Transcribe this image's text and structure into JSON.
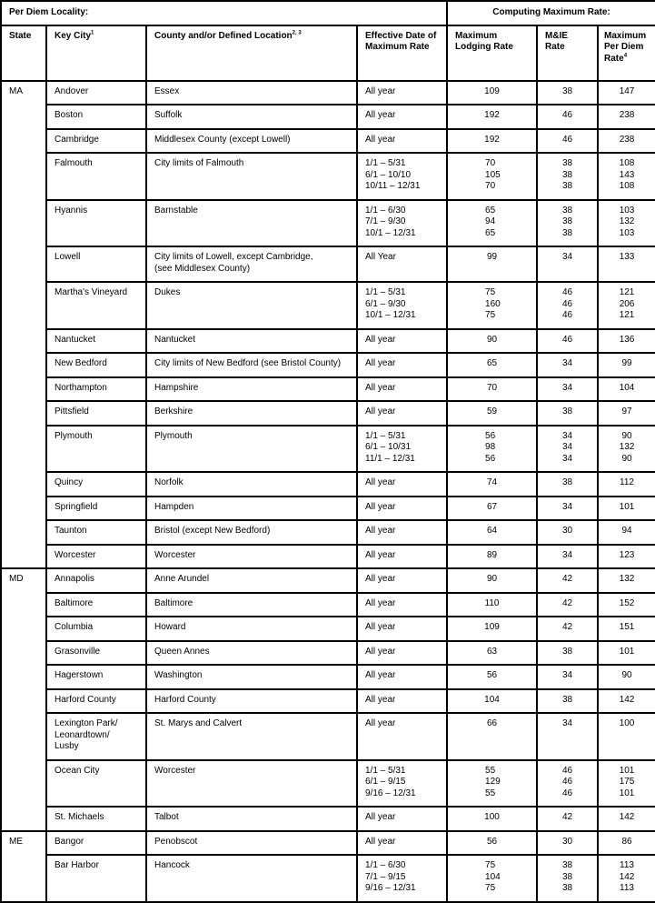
{
  "header": {
    "group_locality": "Per Diem Locality:",
    "group_computing": "Computing Maximum Rate:",
    "col_state": "State",
    "col_key_city": "Key City",
    "col_key_city_note": "1",
    "col_county": "County and/or Defined Location",
    "col_county_note": "2, 3",
    "col_effective": "Effective Date of Maximum Rate",
    "col_lodging": "Maximum Lodging Rate",
    "col_mie": "M&IE Rate",
    "col_per_diem": "Maximum Per Diem Rate",
    "col_per_diem_note": "4"
  },
  "states": [
    {
      "state": "MA",
      "rows": [
        {
          "city": [
            "Andover"
          ],
          "county": [
            "Essex"
          ],
          "dates": [
            "All year"
          ],
          "lodging": [
            "109"
          ],
          "mie": [
            "38"
          ],
          "total": [
            "147"
          ]
        },
        {
          "city": [
            "Boston"
          ],
          "county": [
            "Suffolk"
          ],
          "dates": [
            "All year"
          ],
          "lodging": [
            "192"
          ],
          "mie": [
            "46"
          ],
          "total": [
            "238"
          ]
        },
        {
          "city": [
            "Cambridge"
          ],
          "county": [
            "Middlesex County (except Lowell)"
          ],
          "dates": [
            "All year"
          ],
          "lodging": [
            "192"
          ],
          "mie": [
            "46"
          ],
          "total": [
            "238"
          ]
        },
        {
          "city": [
            "Falmouth"
          ],
          "county": [
            "City limits of Falmouth"
          ],
          "dates": [
            "1/1 – 5/31",
            "6/1 – 10/10",
            "10/11 – 12/31"
          ],
          "lodging": [
            "70",
            "105",
            "70"
          ],
          "mie": [
            "38",
            "38",
            "38"
          ],
          "total": [
            "108",
            "143",
            "108"
          ]
        },
        {
          "city": [
            "Hyannis"
          ],
          "county": [
            "Barnstable"
          ],
          "dates": [
            "1/1 – 6/30",
            "7/1 – 9/30",
            "10/1 – 12/31"
          ],
          "lodging": [
            "65",
            "94",
            "65"
          ],
          "mie": [
            "38",
            "38",
            "38"
          ],
          "total": [
            "103",
            "132",
            "103"
          ]
        },
        {
          "city": [
            "Lowell"
          ],
          "county": [
            "City limits of Lowell, except Cambridge,",
            "(see Middlesex County)"
          ],
          "dates": [
            "All Year"
          ],
          "lodging": [
            "99"
          ],
          "mie": [
            "34"
          ],
          "total": [
            "133"
          ]
        },
        {
          "city": [
            "Martha's Vineyard"
          ],
          "county": [
            "Dukes"
          ],
          "dates": [
            "1/1 – 5/31",
            "6/1 – 9/30",
            "10/1 – 12/31"
          ],
          "lodging": [
            "75",
            "160",
            "75"
          ],
          "mie": [
            "46",
            "46",
            "46"
          ],
          "total": [
            "121",
            "206",
            "121"
          ]
        },
        {
          "city": [
            "Nantucket"
          ],
          "county": [
            "Nantucket"
          ],
          "dates": [
            "All year"
          ],
          "lodging": [
            "90"
          ],
          "mie": [
            "46"
          ],
          "total": [
            "136"
          ]
        },
        {
          "city": [
            "New Bedford"
          ],
          "county": [
            "City limits of New Bedford (see Bristol County)"
          ],
          "dates": [
            "All year"
          ],
          "lodging": [
            "65"
          ],
          "mie": [
            "34"
          ],
          "total": [
            "99"
          ]
        },
        {
          "city": [
            "Northampton"
          ],
          "county": [
            "Hampshire"
          ],
          "dates": [
            "All year"
          ],
          "lodging": [
            "70"
          ],
          "mie": [
            "34"
          ],
          "total": [
            "104"
          ]
        },
        {
          "city": [
            "Pittsfield"
          ],
          "county": [
            "Berkshire"
          ],
          "dates": [
            "All year"
          ],
          "lodging": [
            "59"
          ],
          "mie": [
            "38"
          ],
          "total": [
            "97"
          ]
        },
        {
          "city": [
            "Plymouth"
          ],
          "county": [
            "Plymouth"
          ],
          "dates": [
            "1/1 – 5/31",
            "6/1 – 10/31",
            "11/1 – 12/31"
          ],
          "lodging": [
            "56",
            "98",
            "56"
          ],
          "mie": [
            "34",
            "34",
            "34"
          ],
          "total": [
            "90",
            "132",
            "90"
          ]
        },
        {
          "city": [
            "Quincy"
          ],
          "county": [
            "Norfolk"
          ],
          "dates": [
            "All year"
          ],
          "lodging": [
            "74"
          ],
          "mie": [
            "38"
          ],
          "total": [
            "112"
          ]
        },
        {
          "city": [
            "Springfield"
          ],
          "county": [
            "Hampden"
          ],
          "dates": [
            "All year"
          ],
          "lodging": [
            "67"
          ],
          "mie": [
            "34"
          ],
          "total": [
            "101"
          ]
        },
        {
          "city": [
            "Taunton"
          ],
          "county": [
            "Bristol (except New Bedford)"
          ],
          "dates": [
            "All year"
          ],
          "lodging": [
            "64"
          ],
          "mie": [
            "30"
          ],
          "total": [
            "94"
          ]
        },
        {
          "city": [
            "Worcester"
          ],
          "county": [
            "Worcester"
          ],
          "dates": [
            "All year"
          ],
          "lodging": [
            "89"
          ],
          "mie": [
            "34"
          ],
          "total": [
            "123"
          ]
        }
      ]
    },
    {
      "state": "MD",
      "rows": [
        {
          "city": [
            "Annapolis"
          ],
          "county": [
            "Anne Arundel"
          ],
          "dates": [
            "All year"
          ],
          "lodging": [
            "90"
          ],
          "mie": [
            "42"
          ],
          "total": [
            "132"
          ]
        },
        {
          "city": [
            "Baltimore"
          ],
          "county": [
            "Baltimore"
          ],
          "dates": [
            "All year"
          ],
          "lodging": [
            "110"
          ],
          "mie": [
            "42"
          ],
          "total": [
            "152"
          ]
        },
        {
          "city": [
            "Columbia"
          ],
          "county": [
            "Howard"
          ],
          "dates": [
            "All year"
          ],
          "lodging": [
            "109"
          ],
          "mie": [
            "42"
          ],
          "total": [
            "151"
          ]
        },
        {
          "city": [
            "Grasonville"
          ],
          "county": [
            "Queen Annes"
          ],
          "dates": [
            "All year"
          ],
          "lodging": [
            "63"
          ],
          "mie": [
            "38"
          ],
          "total": [
            "101"
          ]
        },
        {
          "city": [
            "Hagerstown"
          ],
          "county": [
            "Washington"
          ],
          "dates": [
            "All year"
          ],
          "lodging": [
            "56"
          ],
          "mie": [
            "34"
          ],
          "total": [
            "90"
          ]
        },
        {
          "city": [
            "Harford County"
          ],
          "county": [
            "Harford County"
          ],
          "dates": [
            "All year"
          ],
          "lodging": [
            "104"
          ],
          "mie": [
            "38"
          ],
          "total": [
            "142"
          ]
        },
        {
          "city": [
            "Lexington Park/",
            "Leonardtown/",
            "Lusby"
          ],
          "county": [
            "St. Marys and Calvert"
          ],
          "dates": [
            "All year"
          ],
          "lodging": [
            "66"
          ],
          "mie": [
            "34"
          ],
          "total": [
            "100"
          ]
        },
        {
          "city": [
            "Ocean City"
          ],
          "county": [
            "Worcester"
          ],
          "dates": [
            "1/1 – 5/31",
            "6/1 – 9/15",
            "9/16 – 12/31"
          ],
          "lodging": [
            "55",
            "129",
            "55"
          ],
          "mie": [
            "46",
            "46",
            "46"
          ],
          "total": [
            "101",
            "175",
            "101"
          ]
        },
        {
          "city": [
            "St. Michaels"
          ],
          "county": [
            "Talbot"
          ],
          "dates": [
            "All year"
          ],
          "lodging": [
            "100"
          ],
          "mie": [
            "42"
          ],
          "total": [
            "142"
          ]
        }
      ]
    },
    {
      "state": "ME",
      "rows": [
        {
          "city": [
            "Bangor"
          ],
          "county": [
            "Penobscot"
          ],
          "dates": [
            "All year"
          ],
          "lodging": [
            "56"
          ],
          "mie": [
            "30"
          ],
          "total": [
            "86"
          ]
        },
        {
          "city": [
            "Bar Harbor"
          ],
          "county": [
            "Hancock"
          ],
          "dates": [
            "1/1 – 6/30",
            "7/1 – 9/15",
            "9/16 – 12/31"
          ],
          "lodging": [
            "75",
            "104",
            "75"
          ],
          "mie": [
            "38",
            "38",
            "38"
          ],
          "total": [
            "113",
            "142",
            "113"
          ]
        }
      ]
    }
  ]
}
